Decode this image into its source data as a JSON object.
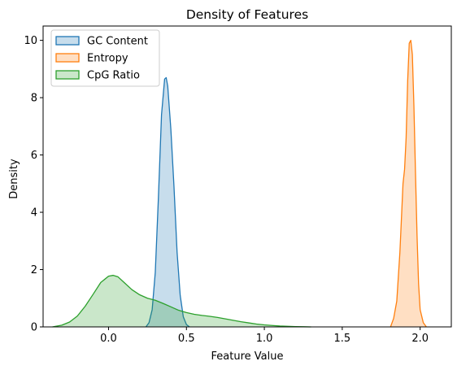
{
  "chart_data": {
    "type": "area",
    "title": "Density of Features",
    "xlabel": "Feature Value",
    "ylabel": "Density",
    "xlim": [
      -0.42,
      2.2
    ],
    "ylim": [
      0,
      10.5
    ],
    "xticks": [
      0.0,
      0.5,
      1.0,
      1.5,
      2.0
    ],
    "xtick_labels": [
      "0.0",
      "0.5",
      "1.0",
      "1.5",
      "2.0"
    ],
    "yticks": [
      0,
      2,
      4,
      6,
      8,
      10
    ],
    "ytick_labels": [
      "0",
      "2",
      "4",
      "6",
      "8",
      "10"
    ],
    "grid": false,
    "legend_position": "top-left",
    "series": [
      {
        "name": "GC Content",
        "color": "#1f77b4",
        "x": [
          0.24,
          0.26,
          0.28,
          0.3,
          0.32,
          0.34,
          0.36,
          0.37,
          0.38,
          0.4,
          0.42,
          0.44,
          0.46,
          0.48,
          0.5,
          0.52
        ],
        "y": [
          0.0,
          0.15,
          0.6,
          1.9,
          4.5,
          7.4,
          8.65,
          8.7,
          8.4,
          6.9,
          4.9,
          2.6,
          1.1,
          0.35,
          0.08,
          0.0
        ]
      },
      {
        "name": "Entropy",
        "color": "#ff7f0e",
        "x": [
          1.81,
          1.83,
          1.85,
          1.87,
          1.88,
          1.89,
          1.9,
          1.91,
          1.92,
          1.93,
          1.94,
          1.95,
          1.96,
          1.97,
          1.98,
          1.99,
          2.0,
          2.02,
          2.04
        ],
        "y": [
          0.0,
          0.3,
          0.9,
          2.6,
          3.8,
          5.0,
          5.5,
          6.6,
          8.6,
          9.9,
          10.0,
          9.5,
          7.7,
          5.4,
          3.2,
          1.5,
          0.6,
          0.15,
          0.0
        ]
      },
      {
        "name": "CpG Ratio",
        "color": "#2ca02c",
        "x": [
          -0.36,
          -0.3,
          -0.25,
          -0.2,
          -0.15,
          -0.1,
          -0.05,
          0.0,
          0.03,
          0.06,
          0.1,
          0.15,
          0.2,
          0.25,
          0.3,
          0.35,
          0.4,
          0.45,
          0.5,
          0.55,
          0.6,
          0.65,
          0.7,
          0.75,
          0.8,
          0.85,
          0.9,
          0.95,
          1.0,
          1.05,
          1.1,
          1.15,
          1.2,
          1.25,
          1.3
        ],
        "y": [
          0.0,
          0.06,
          0.17,
          0.38,
          0.72,
          1.13,
          1.55,
          1.77,
          1.8,
          1.75,
          1.55,
          1.3,
          1.12,
          1.0,
          0.93,
          0.82,
          0.7,
          0.58,
          0.5,
          0.44,
          0.4,
          0.37,
          0.33,
          0.28,
          0.23,
          0.18,
          0.14,
          0.1,
          0.07,
          0.05,
          0.03,
          0.02,
          0.01,
          0.005,
          0.0
        ]
      }
    ]
  }
}
